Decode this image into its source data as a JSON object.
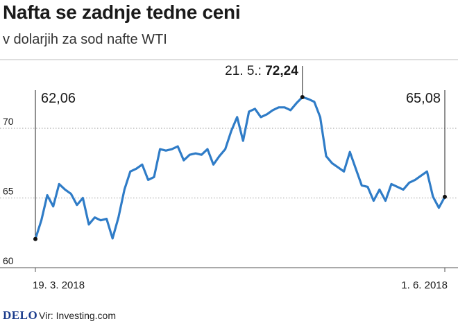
{
  "header": {
    "title": "Nafta se zadnje tedne ceni",
    "subtitle": "v dolarjih za sod nafte WTI"
  },
  "footer": {
    "logo": "DELO",
    "source": "Vir: Investing.com"
  },
  "colors": {
    "line": "#2f7cc7",
    "grid": "#9a9a9a",
    "text": "#1a1a1a",
    "logo": "#1b3c8c"
  },
  "chart_data": {
    "type": "line",
    "title": "Nafta se zadnje tedne ceni",
    "subtitle": "v dolarjih za sod nafte WTI",
    "ylim": [
      60,
      73
    ],
    "yticks": [
      60,
      65,
      70
    ],
    "grid": true,
    "x_labels": [
      "19. 3. 2018",
      "1. 6. 2018"
    ],
    "x_start": "2018-03-19",
    "x_end": "2018-06-01",
    "values": [
      62.06,
      63.4,
      65.2,
      64.4,
      66.0,
      65.6,
      65.3,
      64.5,
      65.0,
      63.1,
      63.6,
      63.4,
      63.5,
      62.1,
      63.6,
      65.6,
      66.9,
      67.1,
      67.4,
      66.3,
      66.5,
      68.5,
      68.4,
      68.5,
      68.7,
      67.7,
      68.1,
      68.2,
      68.1,
      68.5,
      67.4,
      68.0,
      68.5,
      69.8,
      70.8,
      69.1,
      71.2,
      71.4,
      70.8,
      71.0,
      71.3,
      71.5,
      71.5,
      71.3,
      71.8,
      72.24,
      72.1,
      71.9,
      70.8,
      68.0,
      67.5,
      67.2,
      66.9,
      68.3,
      67.1,
      65.9,
      65.8,
      64.8,
      65.6,
      64.8,
      66.0,
      65.8,
      65.6,
      66.1,
      66.3,
      66.6,
      66.9,
      65.1,
      64.3,
      65.08
    ],
    "annotations": [
      {
        "index": 0,
        "label": "62,06"
      },
      {
        "index": 45,
        "prefix": "21. 5.:",
        "label": "72,24"
      },
      {
        "index": 69,
        "label": "65,08"
      }
    ]
  }
}
